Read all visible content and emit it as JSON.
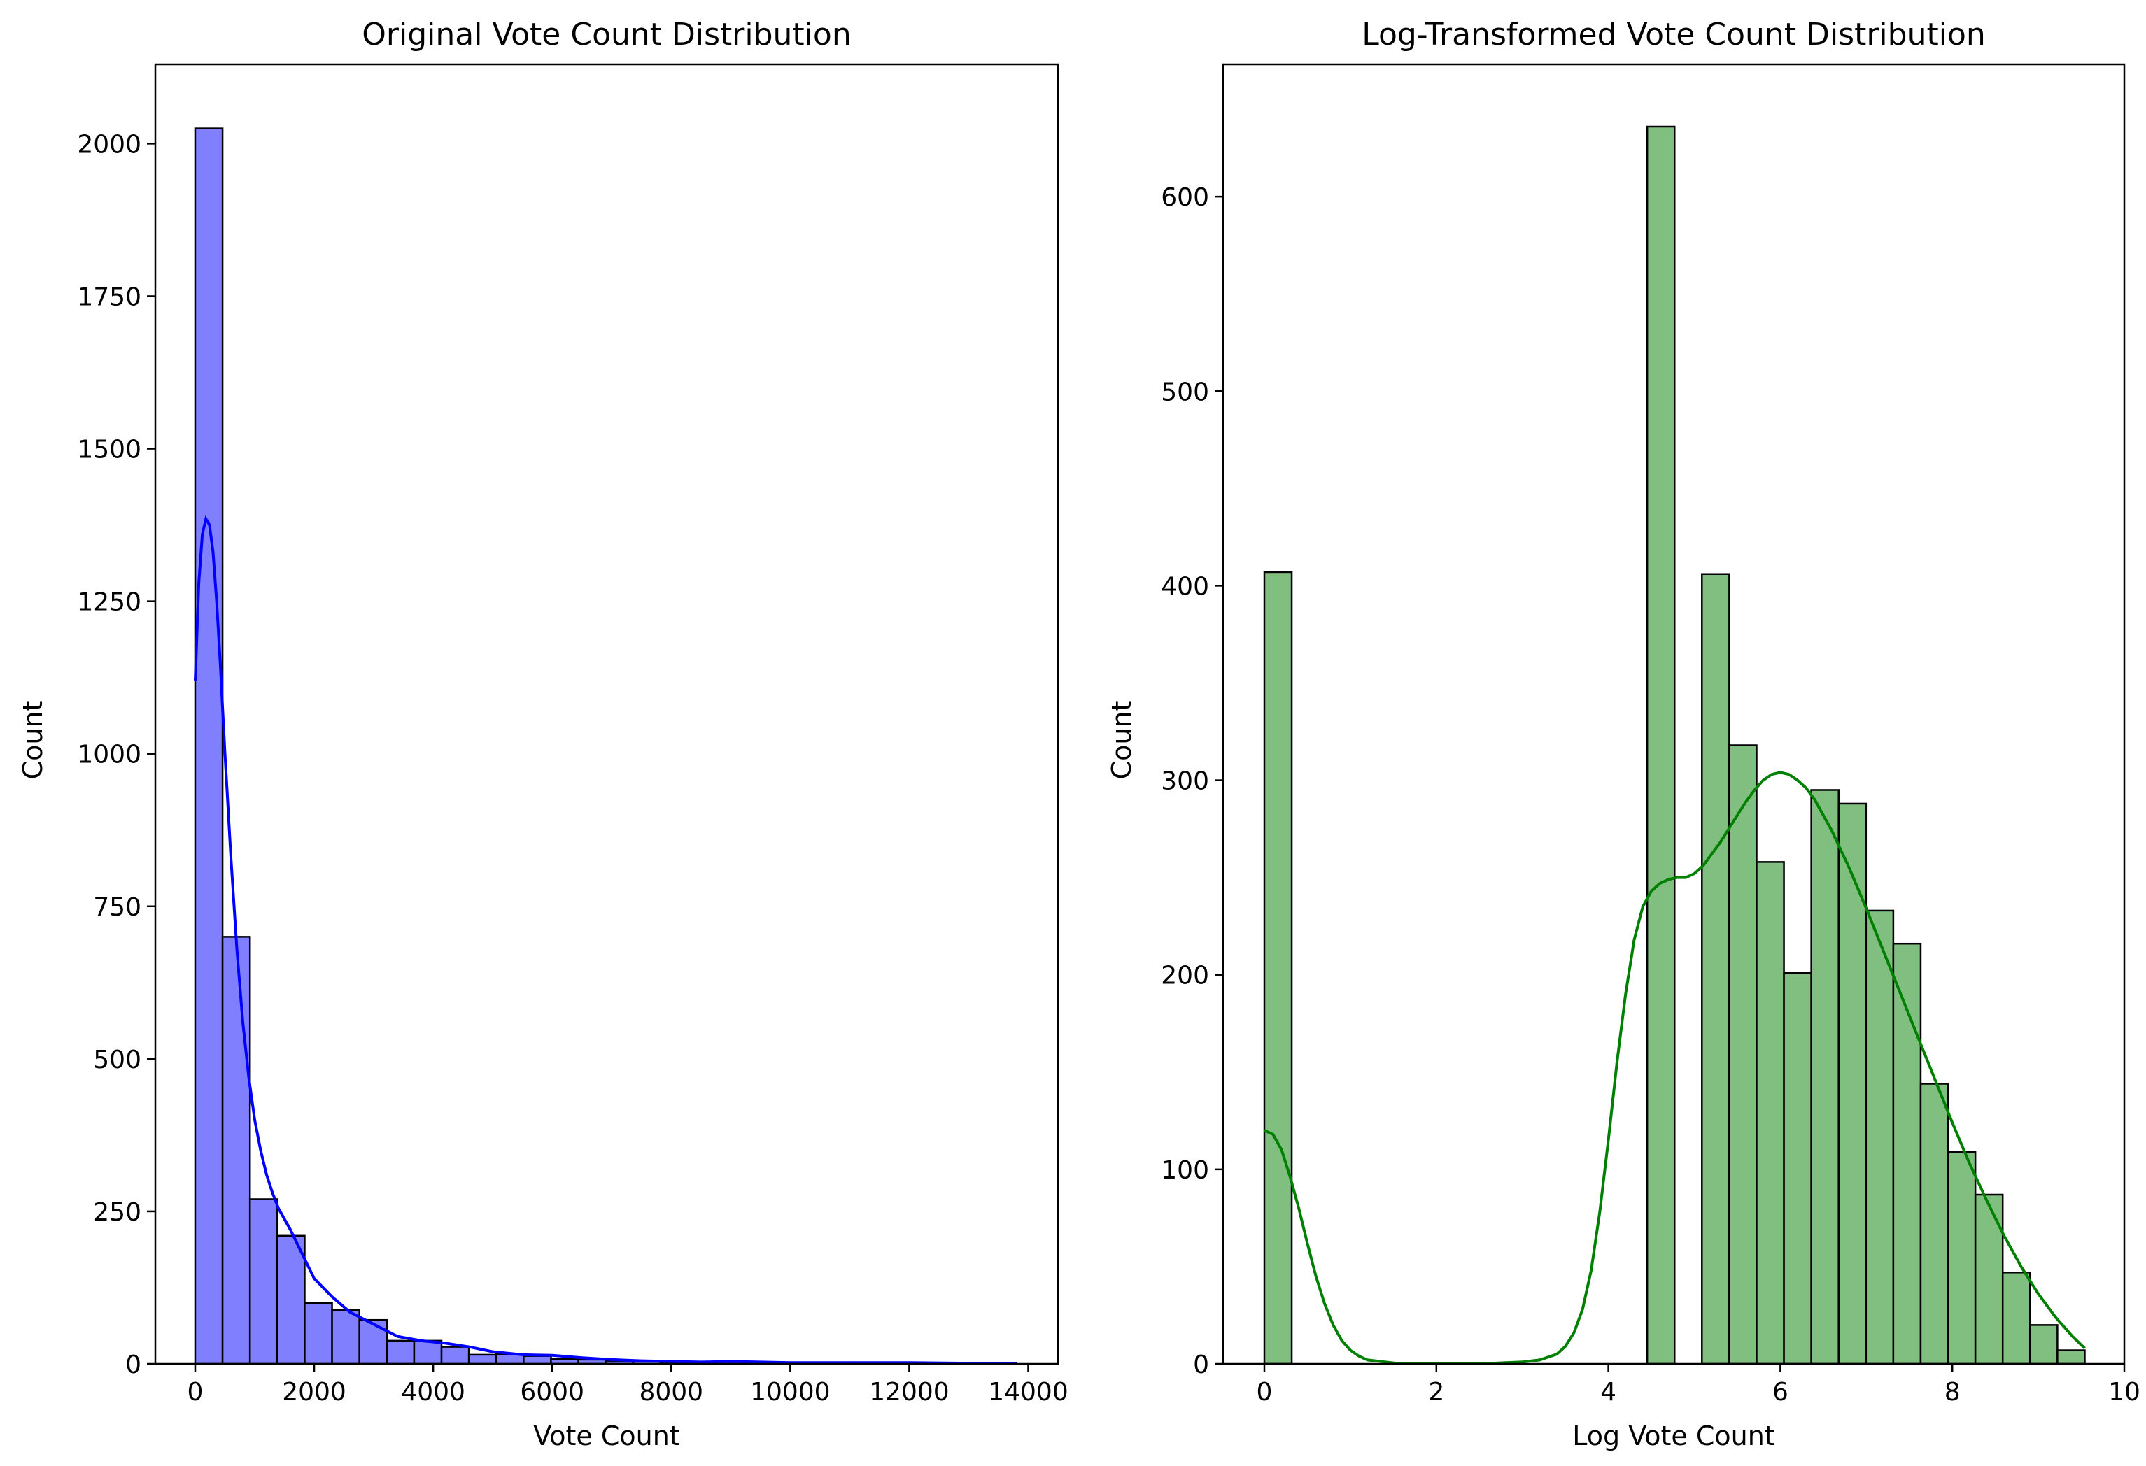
{
  "chart_data": [
    {
      "type": "bar",
      "subtype": "histogram_with_kde",
      "title": "Original Vote Count Distribution",
      "xlabel": "Vote Count",
      "ylabel": "Count",
      "xlim": [
        -670,
        14500
      ],
      "ylim": [
        0,
        2130
      ],
      "grid": false,
      "bar_color": "#8080ff",
      "line_color": "#0000ff",
      "edge_color": "#000000",
      "xticks": [
        0,
        2000,
        4000,
        6000,
        8000,
        10000,
        12000,
        14000
      ],
      "yticks": [
        0,
        250,
        500,
        750,
        1000,
        1250,
        1500,
        1750,
        2000
      ],
      "bin_edges": [
        0,
        460,
        920,
        1380,
        1840,
        2300,
        2760,
        3220,
        3680,
        4140,
        4600,
        5060,
        5520,
        5980,
        6440,
        6900,
        7360,
        7820,
        8280,
        8740,
        9200,
        9660,
        10120,
        10580,
        11040,
        11500,
        11960,
        12420,
        12880,
        13340,
        13800
      ],
      "values": [
        2025,
        700,
        270,
        210,
        100,
        88,
        72,
        38,
        38,
        28,
        15,
        16,
        13,
        8,
        7,
        5,
        4,
        3,
        3,
        4,
        3,
        2,
        2,
        2,
        2,
        2,
        1,
        1,
        1,
        1
      ],
      "kde_x": [
        0,
        60,
        120,
        180,
        240,
        300,
        360,
        420,
        500,
        600,
        700,
        800,
        900,
        1000,
        1100,
        1200,
        1300,
        1400,
        1600,
        1800,
        2000,
        2300,
        2600,
        3000,
        3400,
        3800,
        4200,
        4600,
        5000,
        5500,
        6000,
        6500,
        7000,
        7500,
        8000,
        8500,
        9000,
        9500,
        10000,
        11000,
        12000,
        13000,
        13800
      ],
      "kde_y": [
        1120,
        1280,
        1360,
        1385,
        1375,
        1330,
        1250,
        1150,
        1000,
        830,
        680,
        560,
        470,
        400,
        350,
        310,
        280,
        255,
        220,
        180,
        140,
        110,
        85,
        65,
        45,
        38,
        34,
        28,
        20,
        15,
        14,
        10,
        7,
        5,
        4,
        3,
        4,
        3,
        2,
        2,
        2,
        1,
        1
      ]
    },
    {
      "type": "bar",
      "subtype": "histogram_with_kde",
      "title": "Log-Transformed Vote Count Distribution",
      "xlabel": "Log Vote Count",
      "ylabel": "Count",
      "xlim": [
        -0.48,
        10.0
      ],
      "ylim": [
        0,
        668
      ],
      "grid": false,
      "bar_color": "#80bf80",
      "line_color": "#008000",
      "edge_color": "#000000",
      "xticks": [
        0,
        2,
        4,
        6,
        8,
        10
      ],
      "yticks": [
        0,
        100,
        200,
        300,
        400,
        500,
        600
      ],
      "bin_edges": [
        0,
        0.318,
        0.636,
        0.954,
        1.272,
        1.59,
        1.908,
        2.226,
        2.544,
        2.862,
        3.18,
        3.498,
        3.816,
        4.134,
        4.452,
        4.77,
        5.088,
        5.406,
        5.724,
        6.042,
        6.36,
        6.678,
        6.996,
        7.314,
        7.632,
        7.95,
        8.268,
        8.586,
        8.904,
        9.222,
        9.54
      ],
      "values": [
        407,
        0,
        0,
        0,
        0,
        0,
        0,
        0,
        0,
        0,
        0,
        0,
        0,
        0,
        636,
        0,
        406,
        318,
        258,
        201,
        295,
        288,
        233,
        216,
        144,
        109,
        87,
        47,
        20,
        7
      ],
      "kde_x": [
        0,
        0.1,
        0.2,
        0.3,
        0.4,
        0.5,
        0.6,
        0.7,
        0.8,
        0.9,
        1.0,
        1.1,
        1.2,
        1.4,
        1.6,
        2.0,
        2.5,
        3.0,
        3.2,
        3.4,
        3.5,
        3.6,
        3.7,
        3.8,
        3.9,
        4.0,
        4.1,
        4.2,
        4.3,
        4.4,
        4.5,
        4.6,
        4.7,
        4.8,
        4.9,
        5.0,
        5.1,
        5.2,
        5.3,
        5.4,
        5.5,
        5.6,
        5.7,
        5.8,
        5.9,
        6.0,
        6.1,
        6.2,
        6.3,
        6.4,
        6.6,
        6.8,
        7.0,
        7.2,
        7.4,
        7.6,
        7.8,
        8.0,
        8.2,
        8.4,
        8.6,
        8.8,
        9.0,
        9.2,
        9.4,
        9.54
      ],
      "kde_y": [
        120,
        118,
        110,
        96,
        80,
        62,
        45,
        31,
        20,
        12,
        7,
        4,
        2,
        1,
        0,
        0,
        0,
        1,
        2,
        5,
        9,
        16,
        28,
        48,
        78,
        115,
        155,
        190,
        218,
        235,
        243,
        247,
        249,
        250,
        250,
        252,
        256,
        262,
        268,
        275,
        282,
        289,
        295,
        300,
        303,
        304,
        303,
        300,
        296,
        290,
        274,
        255,
        234,
        212,
        190,
        168,
        146,
        124,
        103,
        84,
        66,
        50,
        36,
        24,
        14,
        8
      ]
    }
  ]
}
